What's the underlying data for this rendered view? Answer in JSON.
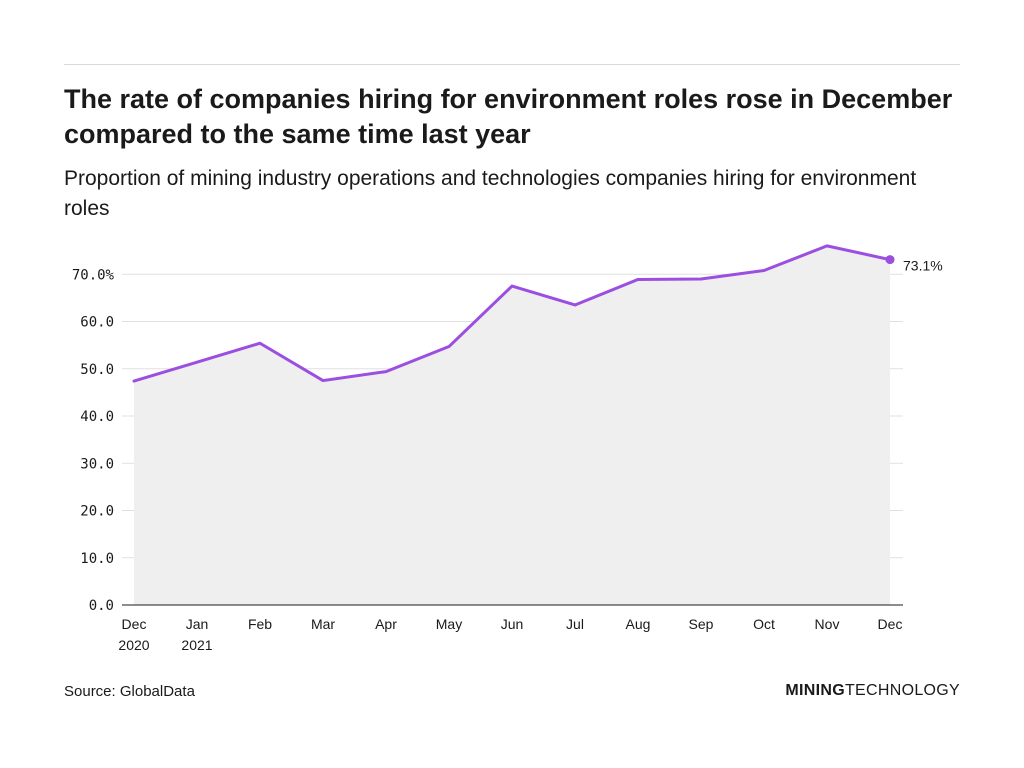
{
  "title": "The rate of companies hiring for environment roles rose in December compared to the same time last year",
  "subtitle": "Proportion of mining industry operations and technologies companies hiring for environment roles",
  "source": "Source: GlobalData",
  "brand": {
    "bold": "MINING",
    "regular": "TECHNOLOGY"
  },
  "colors": {
    "line": "#9b4ee0",
    "area": "#efefef",
    "grid": "#e0e0e0",
    "axis": "#1a1a1a"
  },
  "chart_data": {
    "type": "area",
    "categories": [
      [
        "Dec",
        "2020"
      ],
      [
        "Jan",
        "2021"
      ],
      [
        "Feb"
      ],
      [
        "Mar"
      ],
      [
        "Apr"
      ],
      [
        "May"
      ],
      [
        "Jun"
      ],
      [
        "Jul"
      ],
      [
        "Aug"
      ],
      [
        "Sep"
      ],
      [
        "Oct"
      ],
      [
        "Nov"
      ],
      [
        "Dec"
      ]
    ],
    "series": [
      {
        "values": [
          47.4,
          51.4,
          55.4,
          47.5,
          49.4,
          54.7,
          67.5,
          63.5,
          68.9,
          69.0,
          70.8,
          76.0,
          73.1
        ]
      }
    ],
    "ylim": [
      0,
      75
    ],
    "yticks": [
      0,
      10,
      20,
      30,
      40,
      50,
      60,
      70
    ],
    "ytick_labels": [
      "0.0",
      "10.0",
      "20.0",
      "30.0",
      "40.0",
      "50.0",
      "60.0",
      "70.0%"
    ],
    "end_label": "73.1%",
    "grid": true
  }
}
